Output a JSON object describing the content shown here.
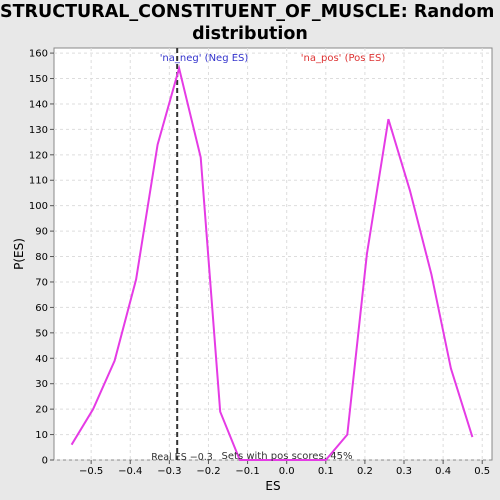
{
  "chart_data": {
    "type": "line",
    "title_lines": [
      "STRUCTURAL_CONSTITUENT_OF_MUSCLE: Random ES",
      "distribution"
    ],
    "xlabel": "ES",
    "ylabel": "P(ES)",
    "xlim": [
      -0.595,
      0.525
    ],
    "ylim": [
      0,
      162
    ],
    "x_ticks": [
      -0.5,
      -0.4,
      -0.3,
      -0.2,
      -0.1,
      0.0,
      0.1,
      0.2,
      0.3,
      0.4,
      0.5
    ],
    "x_tick_labels": [
      "−0.5",
      "−0.4",
      "−0.3",
      "−0.2",
      "−0.1",
      "0.0",
      "0.1",
      "0.2",
      "0.3",
      "0.4",
      "0.5"
    ],
    "y_ticks": [
      0,
      10,
      20,
      30,
      40,
      50,
      60,
      70,
      80,
      90,
      100,
      110,
      120,
      130,
      140,
      150,
      160
    ],
    "grid": true,
    "series": [
      {
        "color": "#e53be5",
        "x": [
          -0.55,
          -0.495,
          -0.44,
          -0.385,
          -0.33,
          -0.275,
          -0.22,
          -0.17,
          -0.12,
          0.0,
          0.1,
          0.155,
          0.205,
          0.26,
          0.315,
          0.37,
          0.42,
          0.475
        ],
        "y": [
          6,
          20,
          39,
          71,
          124,
          154,
          119,
          19,
          0,
          0,
          0,
          10,
          81,
          134,
          106,
          73,
          36,
          9
        ]
      }
    ],
    "real_es": -0.28,
    "annotations": {
      "neg_label": "'na_neg' (Neg ES)",
      "pos_label": "'na_pos' (Pos ES)",
      "real_es_label": "Real ES −0.3",
      "pos_scores_label": "Sets with pos scores: 45%"
    },
    "colors": {
      "line": "#e53be5",
      "neg_label": "#3333cc",
      "pos_label": "#dd3333",
      "plot_bg": "#ffffff",
      "page_bg": "#e8e8e8"
    }
  }
}
